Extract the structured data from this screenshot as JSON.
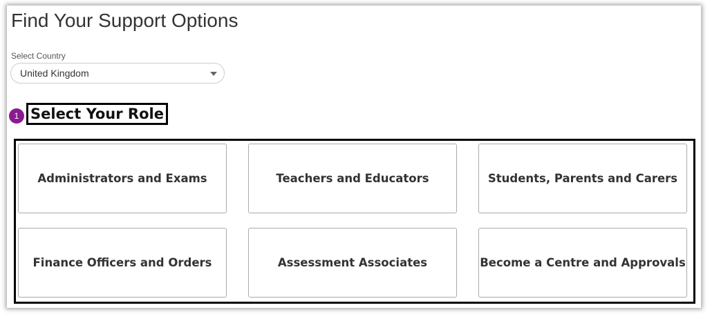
{
  "page": {
    "title": "Find Your Support Options"
  },
  "country": {
    "label": "Select Country",
    "value": "United Kingdom"
  },
  "step": {
    "number": "1",
    "heading": "Select Your Role",
    "badge_color": "#8a1a8f"
  },
  "roles": [
    {
      "label": "Administrators and Exams"
    },
    {
      "label": "Teachers and Educators"
    },
    {
      "label": "Students, Parents and Carers"
    },
    {
      "label": "Finance Officers and Orders"
    },
    {
      "label": "Assessment Associates"
    },
    {
      "label": "Become a Centre and Approvals"
    }
  ]
}
